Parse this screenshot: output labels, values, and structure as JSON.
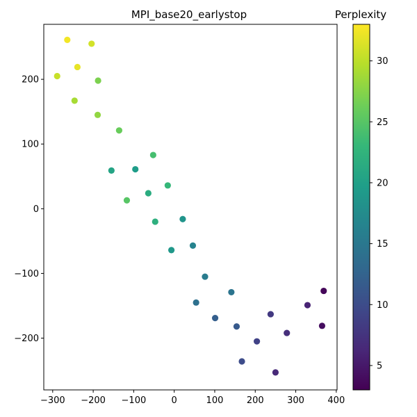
{
  "chart_data": {
    "type": "scatter",
    "title": "MPI_base20_earlystop",
    "xlabel": "",
    "ylabel": "",
    "xlim": [
      -322,
      402
    ],
    "ylim": [
      -280,
      285
    ],
    "xticks": [
      -300,
      -200,
      -100,
      0,
      100,
      200,
      300,
      400
    ],
    "xtick_labels": [
      "−300",
      "−200",
      "−100",
      "0",
      "100",
      "200",
      "300",
      "400"
    ],
    "yticks": [
      -200,
      -100,
      0,
      100,
      200
    ],
    "ytick_labels": [
      "−200",
      "−100",
      "0",
      "100",
      "200"
    ],
    "grid": false,
    "colorbar": {
      "label": "Perplexity",
      "colormap": "viridis",
      "range": [
        3,
        33
      ],
      "ticks": [
        5,
        10,
        15,
        20,
        25,
        30
      ],
      "tick_labels": [
        "5",
        "10",
        "15",
        "20",
        "25",
        "30"
      ],
      "colors": [
        "#440154",
        "#482878",
        "#3e4989",
        "#31688e",
        "#26828e",
        "#1f9e89",
        "#35b779",
        "#6ece58",
        "#b5de2b",
        "#fde725"
      ]
    },
    "points": [
      {
        "x": -264,
        "y": 261,
        "c": 32.5
      },
      {
        "x": -204,
        "y": 255,
        "c": 31.0
      },
      {
        "x": -239,
        "y": 219,
        "c": 32.0
      },
      {
        "x": -289,
        "y": 205,
        "c": 30.5
      },
      {
        "x": -188,
        "y": 198,
        "c": 27.0
      },
      {
        "x": -246,
        "y": 167,
        "c": 29.0
      },
      {
        "x": -189,
        "y": 145,
        "c": 28.0
      },
      {
        "x": -136,
        "y": 121,
        "c": 26.0
      },
      {
        "x": -52,
        "y": 83,
        "c": 24.0
      },
      {
        "x": -96,
        "y": 61,
        "c": 19.5
      },
      {
        "x": -155,
        "y": 59,
        "c": 20.5
      },
      {
        "x": -16,
        "y": 36,
        "c": 23.0
      },
      {
        "x": -64,
        "y": 24,
        "c": 21.5
      },
      {
        "x": -117,
        "y": 13,
        "c": 25.0
      },
      {
        "x": -47,
        "y": -20,
        "c": 22.0
      },
      {
        "x": 21,
        "y": -16,
        "c": 18.5
      },
      {
        "x": 46,
        "y": -57,
        "c": 16.5
      },
      {
        "x": -7,
        "y": -64,
        "c": 19.0
      },
      {
        "x": 76,
        "y": -105,
        "c": 15.5
      },
      {
        "x": 141,
        "y": -129,
        "c": 14.5
      },
      {
        "x": 54,
        "y": -145,
        "c": 14.0
      },
      {
        "x": 101,
        "y": -169,
        "c": 12.0
      },
      {
        "x": 154,
        "y": -182,
        "c": 11.5
      },
      {
        "x": 238,
        "y": -163,
        "c": 8.0
      },
      {
        "x": 329,
        "y": -149,
        "c": 6.0
      },
      {
        "x": 369,
        "y": -127,
        "c": 3.5
      },
      {
        "x": 365,
        "y": -181,
        "c": 4.0
      },
      {
        "x": 278,
        "y": -192,
        "c": 7.0
      },
      {
        "x": 204,
        "y": -205,
        "c": 9.0
      },
      {
        "x": 167,
        "y": -236,
        "c": 10.0
      },
      {
        "x": 250,
        "y": -253,
        "c": 6.5
      }
    ]
  }
}
